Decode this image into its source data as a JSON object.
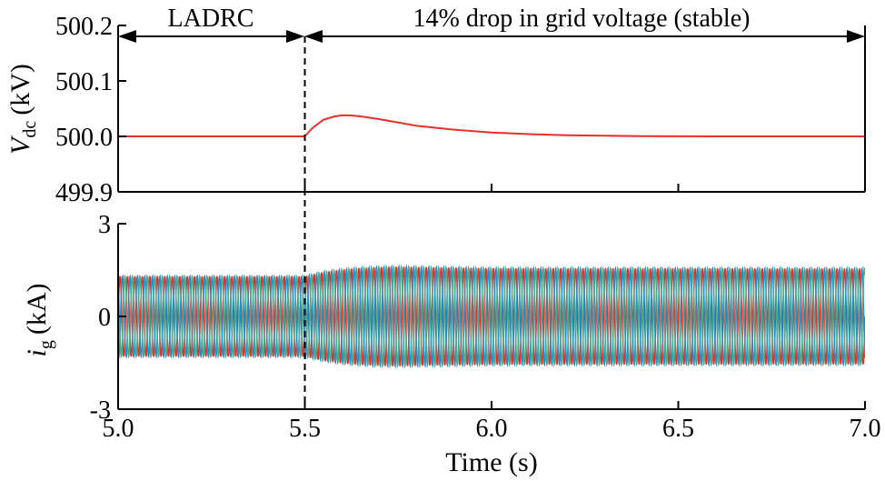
{
  "chart_data": [
    {
      "type": "line",
      "ylabel": {
        "main": "V",
        "sub": "dc",
        "unit": "(kV)"
      },
      "xlim": [
        5.0,
        7.0
      ],
      "ylim": [
        499.9,
        500.2
      ],
      "yticks": [
        "500.2",
        "500.1",
        "500.0",
        "499.9"
      ],
      "ytick_values": [
        500.2,
        500.1,
        500.0,
        499.9
      ],
      "series": [
        {
          "color": "#e8302a",
          "x": [
            5.0,
            5.5,
            5.52,
            5.55,
            5.58,
            5.6,
            5.62,
            5.65,
            5.7,
            5.75,
            5.8,
            5.9,
            6.0,
            6.1,
            6.2,
            6.4,
            6.6,
            6.8,
            7.0
          ],
          "y": [
            500.0,
            500.0,
            500.015,
            500.03,
            500.036,
            500.038,
            500.038,
            500.036,
            500.031,
            500.025,
            500.019,
            500.012,
            500.007,
            500.004,
            500.002,
            500.0005,
            500.0001,
            500.0,
            500.0
          ]
        }
      ]
    },
    {
      "type": "line",
      "ylabel": {
        "main": "i",
        "sub": "g",
        "unit": "(kA)"
      },
      "xlabel": "Time (s)",
      "xlim": [
        5.0,
        7.0
      ],
      "ylim": [
        -3,
        3
      ],
      "yticks": [
        "3",
        "0",
        "-3"
      ],
      "ytick_values": [
        3,
        0,
        -3
      ],
      "xticks": [
        "5.0",
        "5.5",
        "6.0",
        "6.5",
        "7.0"
      ],
      "xtick_values": [
        5.0,
        5.5,
        6.0,
        6.5,
        7.0
      ],
      "frequency_hz": 50,
      "phases": 3,
      "series_colors": [
        "#e8302a",
        "#2a8fc4",
        "#4fa888"
      ],
      "amplitude_envelope": {
        "t": [
          5.0,
          5.5,
          5.52,
          5.55,
          5.6,
          5.65,
          5.7,
          5.75,
          5.8,
          6.0,
          7.0
        ],
        "amp": [
          1.3,
          1.3,
          1.36,
          1.44,
          1.52,
          1.57,
          1.6,
          1.61,
          1.6,
          1.56,
          1.55
        ]
      }
    }
  ],
  "annotations": {
    "left_label": "LADRC",
    "right_label": "14% drop in grid voltage (stable)",
    "event_time": 5.5
  }
}
